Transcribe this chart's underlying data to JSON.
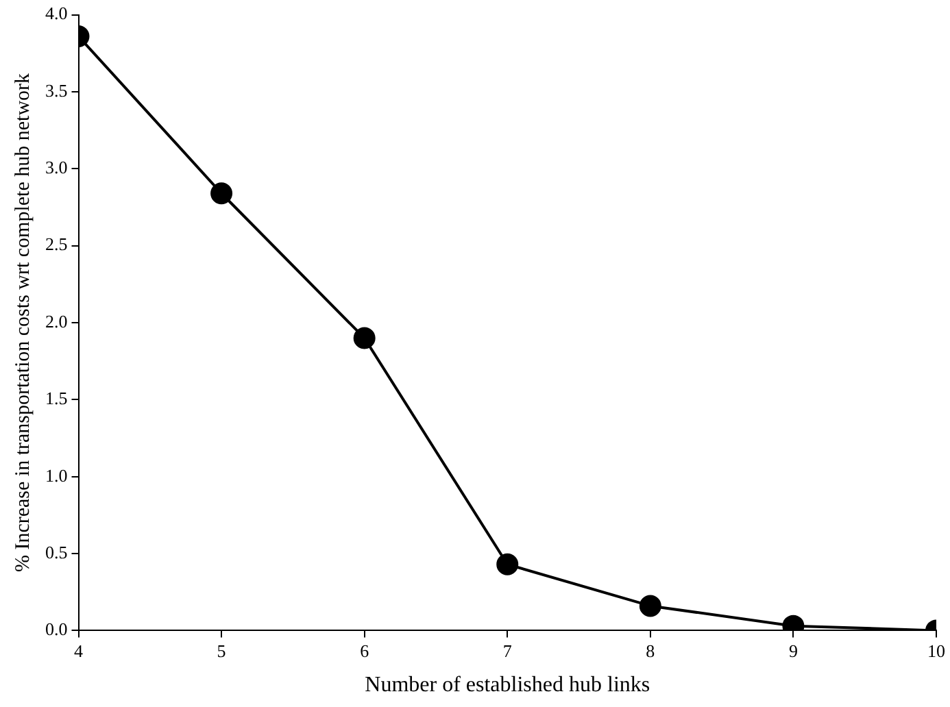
{
  "chart_data": {
    "type": "line",
    "xlabel": "Number of established hub links",
    "ylabel": "% Increase in transportation costs wrt complete hub network",
    "x": [
      4,
      5,
      6,
      7,
      8,
      9,
      10
    ],
    "series": [
      {
        "color": "#000000",
        "values": [
          3.86,
          2.84,
          1.9,
          0.43,
          0.16,
          0.03,
          0.0
        ]
      }
    ],
    "xlim": [
      4,
      10
    ],
    "xticks": [
      4,
      5,
      6,
      7,
      8,
      9,
      10
    ],
    "ylim": [
      0,
      4
    ],
    "yticks": [
      {
        "value": 0,
        "label": "0.0"
      },
      {
        "value": 0.5,
        "label": "0.5"
      },
      {
        "value": 1,
        "label": "1.0"
      },
      {
        "value": 1.5,
        "label": "1.5"
      },
      {
        "value": 2,
        "label": "2.0"
      },
      {
        "value": 2.5,
        "label": "2.5"
      },
      {
        "value": 3,
        "label": "3.0"
      },
      {
        "value": 3.5,
        "label": "3.5"
      },
      {
        "value": 4,
        "label": "4.0"
      }
    ],
    "grid": false,
    "legend": false,
    "marker": "circle",
    "line_style": "solid"
  }
}
